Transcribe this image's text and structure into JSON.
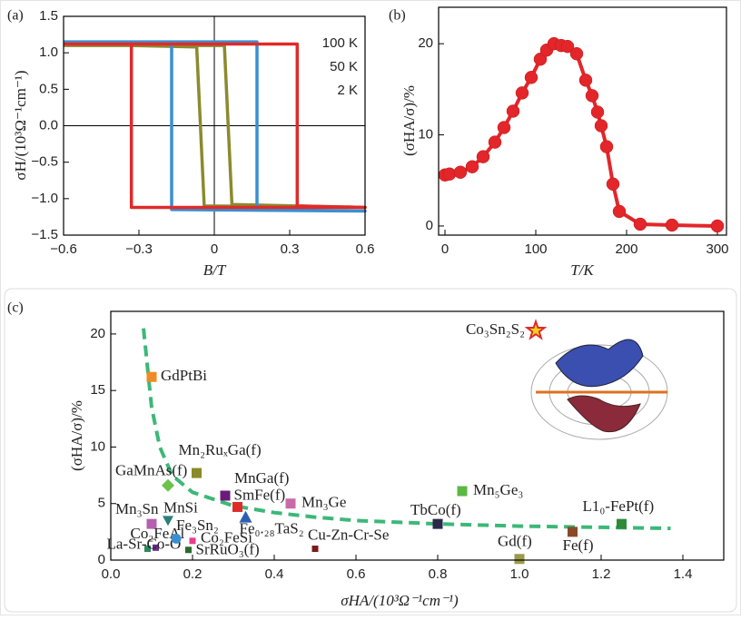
{
  "chart_data": [
    {
      "type": "line",
      "label": "(a)",
      "xlabel": "B/T",
      "ylabel": "σH/(10³Ω⁻¹cm⁻¹)",
      "xlim": [
        -0.6,
        0.6
      ],
      "ylim": [
        -1.5,
        1.5
      ],
      "xticks": [
        {
          "value": -0.6,
          "label": "−0.6"
        },
        {
          "value": -0.3,
          "label": "−0.3"
        },
        0,
        0.3,
        0.6
      ],
      "yticks": [
        1.5,
        {
          "value": 1,
          "label": "1.0"
        },
        0.5,
        {
          "value": 0,
          "label": "0.0"
        },
        {
          "value": -0.5,
          "label": "−0.5"
        },
        {
          "value": -1,
          "label": "−1.0"
        },
        {
          "value": -1.5,
          "label": "−1.5"
        }
      ],
      "legend": "upper right",
      "series": [
        {
          "name": "100 K",
          "color": "#8b8a2e",
          "x": [
            -0.6,
            0.04,
            0.07,
            0.6,
            -0.04,
            -0.07,
            -0.6
          ],
          "values": [
            1.1,
            1.1,
            -1.08,
            -1.12,
            -1.1,
            1.08,
            1.12
          ]
        },
        {
          "name": "50 K",
          "color": "#3a8fd1",
          "x": [
            -0.6,
            0.17,
            0.17,
            0.6,
            -0.17,
            -0.17
          ],
          "values": [
            1.15,
            1.15,
            -1.15,
            -1.17,
            -1.15,
            1.15
          ]
        },
        {
          "name": "2 K",
          "color": "#e02a2a",
          "x": [
            -0.6,
            0.33,
            0.33,
            0.6,
            -0.33,
            -0.33
          ],
          "values": [
            1.12,
            1.12,
            -1.1,
            -1.12,
            -1.12,
            1.12
          ]
        }
      ]
    },
    {
      "type": "line",
      "label": "(b)",
      "xlabel": "T/K",
      "ylabel": "(σHA/σ)/%",
      "xlim": [
        -7,
        310
      ],
      "ylim": [
        -1,
        24
      ],
      "xticks": [
        0,
        100,
        200,
        300
      ],
      "yticks": [
        0,
        10,
        20
      ],
      "series": [
        {
          "color": "#e3262a",
          "marker": "circle",
          "x": [
            0,
            5,
            17,
            30,
            42,
            55,
            65,
            75,
            85,
            95,
            105,
            112,
            120,
            128,
            135,
            145,
            155,
            162,
            168,
            172,
            178,
            185,
            192,
            215,
            250,
            300
          ],
          "values": [
            5.6,
            5.7,
            5.9,
            6.5,
            7.6,
            9.2,
            10.8,
            12.6,
            14.6,
            16.3,
            18.3,
            19.3,
            20,
            19.8,
            19.7,
            18.9,
            16,
            14.3,
            12.5,
            11,
            8.7,
            4.6,
            1.6,
            0.2,
            0.1,
            0
          ]
        }
      ]
    },
    {
      "type": "scatter",
      "label": "(c)",
      "xlabel": "σHA/(10³Ω⁻¹cm⁻¹)",
      "ylabel": "(σHA/σ)/%",
      "xlim": [
        0,
        1.5
      ],
      "ylim": [
        0,
        22
      ],
      "xticks": [
        {
          "value": 0,
          "label": "0.0"
        },
        0.2,
        0.4,
        0.6,
        0.8,
        {
          "value": 1,
          "label": "1.0"
        },
        1.2,
        1.4
      ],
      "yticks": [
        0,
        5,
        10,
        15,
        20
      ],
      "fit": {
        "color": "#3cb878",
        "dashed": true,
        "x": [
          0.08,
          0.1,
          0.12,
          0.15,
          0.2,
          0.3,
          0.4,
          0.5,
          0.6,
          0.8,
          1.0,
          1.2,
          1.37
        ],
        "values": [
          20.5,
          13.5,
          10,
          7.5,
          6,
          4.8,
          4.2,
          3.8,
          3.5,
          3.2,
          3,
          2.9,
          2.8
        ]
      },
      "series": [
        {
          "name": "Co₃Sn₂S₂",
          "color": "#f3d21d",
          "edge": "#e02a2a",
          "label_color": "#e02a2a",
          "marker": "star",
          "x": [
            1.04
          ],
          "values": [
            20.3
          ]
        },
        {
          "name": "GdPtBi",
          "color": "#f08a24",
          "marker": "square",
          "x": [
            0.1
          ],
          "values": [
            16.2
          ]
        },
        {
          "name": "GaMnAs(f)",
          "color": "#6cc24a",
          "label_color": "#5aa02c",
          "marker": "diamond",
          "x": [
            0.14
          ],
          "values": [
            6.6
          ]
        },
        {
          "name": "Mn₂RuₓGa(f)",
          "color": "#8a8a2a",
          "marker": "square",
          "x": [
            0.21
          ],
          "values": [
            7.7
          ]
        },
        {
          "name": "MnGa(f)",
          "color": "#6a1b7a",
          "marker": "square",
          "x": [
            0.28
          ],
          "values": [
            5.7
          ]
        },
        {
          "name": "SmFe(f)",
          "color": "#e02a2a",
          "marker": "square",
          "x": [
            0.31
          ],
          "values": [
            4.7
          ]
        },
        {
          "name": "Mn₃Ge",
          "color": "#c86aa8",
          "marker": "square",
          "x": [
            0.44
          ],
          "values": [
            5.0
          ]
        },
        {
          "name": "Fe₀.₂₈TaS₂",
          "color": "#2c5fb0",
          "marker": "triangle-up",
          "x": [
            0.33
          ],
          "values": [
            3.8
          ]
        },
        {
          "name": "Mn₃Sn",
          "color": "#b65fb0",
          "marker": "square",
          "x": [
            0.1
          ],
          "values": [
            3.2
          ]
        },
        {
          "name": "MnSi",
          "color": "#2a7f7a",
          "marker": "triangle-down",
          "x": [
            0.14
          ],
          "values": [
            3.5
          ]
        },
        {
          "name": "Co₂FeAl",
          "color": "#6a2a8a",
          "marker": "small-square",
          "x": [
            0.11
          ],
          "values": [
            1.1
          ]
        },
        {
          "name": "La-Sr-Co-O",
          "color": "#2a8a5a",
          "marker": "small-square",
          "x": [
            0.09
          ],
          "values": [
            1.0
          ]
        },
        {
          "name": "Fe₃Sn₂",
          "color": "#3a8fd1",
          "marker": "circle",
          "x": [
            0.16
          ],
          "values": [
            1.9
          ]
        },
        {
          "name": "Co₂FeSi",
          "color": "#e83e8c",
          "marker": "small-square",
          "x": [
            0.2
          ],
          "values": [
            1.7
          ]
        },
        {
          "name": "SrRuO₃(f)",
          "color": "#2a6a2a",
          "marker": "small-square",
          "x": [
            0.19
          ],
          "values": [
            0.9
          ]
        },
        {
          "name": "Cu-Zn-Cr-Se",
          "color": "#7a1a1a",
          "marker": "small-square",
          "x": [
            0.5
          ],
          "values": [
            1.0
          ]
        },
        {
          "name": "TbCo(f)",
          "color": "#2a2a4a",
          "label_color": "#333333",
          "marker": "square",
          "x": [
            0.8
          ],
          "values": [
            3.2
          ]
        },
        {
          "name": "Mn₅Ge₃",
          "color": "#5ab843",
          "label_color": "#2a4fa0",
          "marker": "square",
          "x": [
            0.86
          ],
          "values": [
            6.1
          ]
        },
        {
          "name": "Gd(f)",
          "color": "#9a9a4a",
          "label_color": "#8a8a2a",
          "marker": "square",
          "x": [
            1.0
          ],
          "values": [
            0.1
          ]
        },
        {
          "name": "Fe(f)",
          "color": "#8a4a2a",
          "label_color": "#7a1030",
          "marker": "square",
          "x": [
            1.13
          ],
          "values": [
            2.5
          ]
        },
        {
          "name": "L1₀-FePt(f)",
          "color": "#2f8a3a",
          "marker": "square",
          "x": [
            1.25
          ],
          "values": [
            3.2
          ]
        }
      ]
    }
  ]
}
